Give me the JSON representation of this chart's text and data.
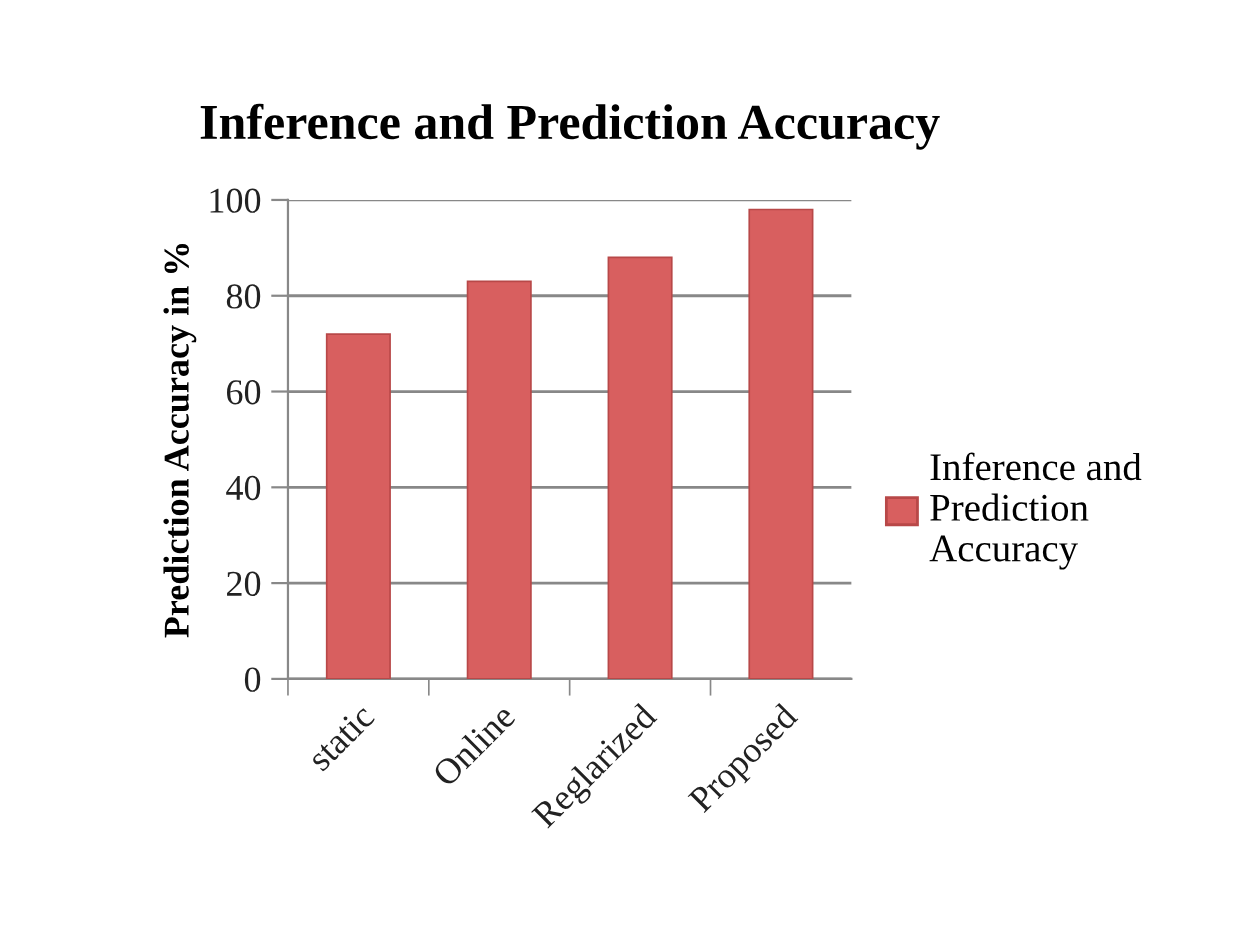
{
  "chart_data": {
    "type": "bar",
    "title": "Inference and Prediction Accuracy",
    "ylabel": "Prediction Accuracy in %",
    "categories": [
      "static",
      "Online",
      "Reglarized",
      "Proposed"
    ],
    "series": [
      {
        "name": "Inference and Prediction Accuracy",
        "color": "#d85f5f",
        "values": [
          72,
          83,
          88,
          98
        ]
      }
    ],
    "ylim": [
      0,
      100
    ],
    "yticks": [
      0,
      20,
      40,
      60,
      80,
      100
    ],
    "grid": "y",
    "legend": "right"
  }
}
